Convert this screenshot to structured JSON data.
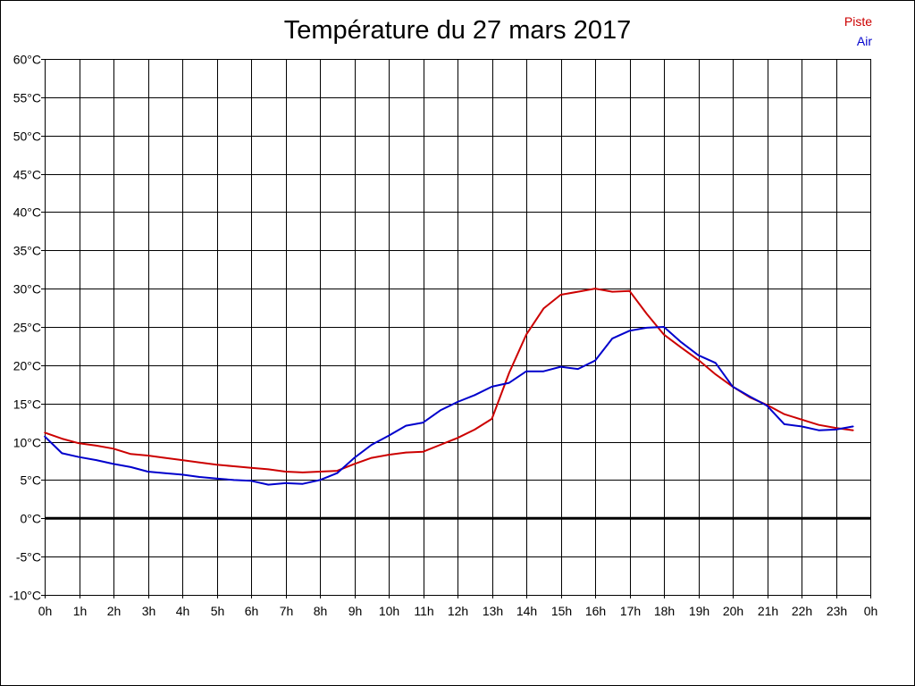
{
  "chart_data": {
    "type": "line",
    "title": "Température du 27 mars 2017",
    "x_tick_labels": [
      "0h",
      "1h",
      "2h",
      "3h",
      "4h",
      "5h",
      "6h",
      "7h",
      "8h",
      "9h",
      "10h",
      "11h",
      "12h",
      "13h",
      "14h",
      "15h",
      "16h",
      "17h",
      "18h",
      "19h",
      "20h",
      "21h",
      "22h",
      "23h",
      "0h"
    ],
    "y_tick_labels": [
      "60°C",
      "55°C",
      "50°C",
      "45°C",
      "40°C",
      "35°C",
      "30°C",
      "25°C",
      "20°C",
      "15°C",
      "10°C",
      "5°C",
      "0°C",
      "-5°C",
      "-10°C"
    ],
    "xlim": [
      0,
      24
    ],
    "ylim": [
      -10,
      60
    ],
    "grid": true,
    "legend_position": "top-right",
    "zero_line": true,
    "series": [
      {
        "name": "Piste",
        "color": "#cc0000",
        "x": [
          0,
          0.5,
          1,
          1.5,
          2,
          2.5,
          3,
          3.5,
          4,
          4.5,
          5,
          5.5,
          6,
          6.5,
          7,
          7.5,
          8,
          8.5,
          9,
          9.5,
          10,
          10.5,
          11,
          11.5,
          12,
          12.5,
          13,
          13.5,
          14,
          14.5,
          15,
          15.5,
          16,
          16.5,
          17,
          17.5,
          18,
          18.5,
          19,
          19.5,
          20,
          20.5,
          21,
          21.5,
          22,
          22.5,
          23,
          23.5
        ],
        "values": [
          11.2,
          10.4,
          9.8,
          9.5,
          9.1,
          8.4,
          8.2,
          7.9,
          7.6,
          7.3,
          7.0,
          6.8,
          6.6,
          6.4,
          6.1,
          6.0,
          6.1,
          6.2,
          7.1,
          7.9,
          8.3,
          8.6,
          8.7,
          9.6,
          10.5,
          11.6,
          13.0,
          19.0,
          24.0,
          27.4,
          29.2,
          29.6,
          30.0,
          29.6,
          29.7,
          26.7,
          24.0,
          22.3,
          20.7,
          18.8,
          17.2,
          15.8,
          14.8,
          13.6,
          12.9,
          12.2,
          11.8,
          11.5
        ]
      },
      {
        "name": "Air",
        "color": "#0000cc",
        "x": [
          0,
          0.5,
          1,
          1.5,
          2,
          2.5,
          3,
          3.5,
          4,
          4.5,
          5,
          5.5,
          6,
          6.5,
          7,
          7.5,
          8,
          8.5,
          9,
          9.5,
          10,
          10.5,
          11,
          11.5,
          12,
          12.5,
          13,
          13.5,
          14,
          14.5,
          15,
          15.5,
          16,
          16.5,
          17,
          17.5,
          18,
          18.5,
          19,
          19.5,
          20,
          20.5,
          21,
          21.5,
          22,
          22.5,
          23,
          23.5
        ],
        "values": [
          10.7,
          8.5,
          8.0,
          7.6,
          7.1,
          6.7,
          6.1,
          5.9,
          5.7,
          5.4,
          5.2,
          5.0,
          4.9,
          4.4,
          4.6,
          4.5,
          5.0,
          5.9,
          7.9,
          9.6,
          10.8,
          12.1,
          12.5,
          14.1,
          15.2,
          16.1,
          17.2,
          17.7,
          19.2,
          19.2,
          19.8,
          19.5,
          20.6,
          23.5,
          24.5,
          24.9,
          25.0,
          23.0,
          21.3,
          20.3,
          17.2,
          15.9,
          14.7,
          12.3,
          12.0,
          11.5,
          11.6,
          12.0
        ]
      }
    ]
  }
}
